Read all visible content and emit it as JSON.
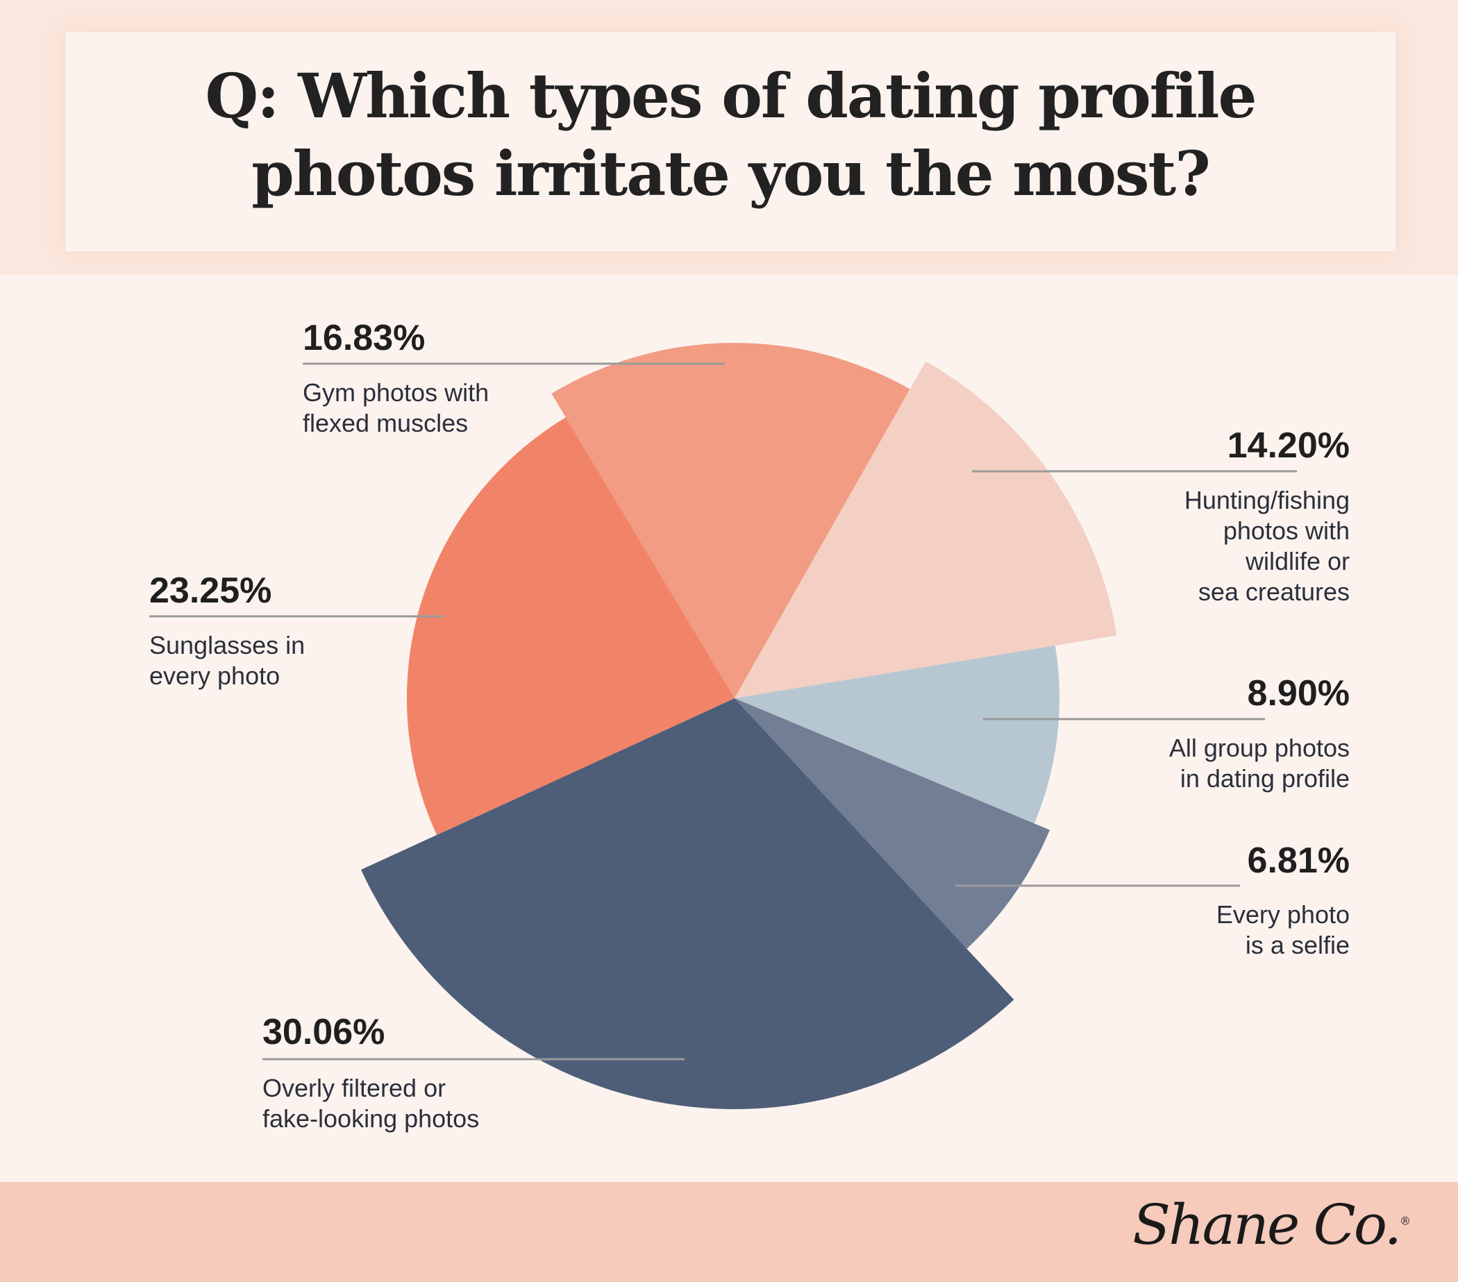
{
  "title": {
    "line1": "Q: Which types of dating profile",
    "line2": "photos irritate you the most?"
  },
  "logo": {
    "text": "Shane Co.",
    "mark": "®"
  },
  "chart_data": {
    "type": "pie",
    "slices": [
      {
        "value": 16.83,
        "percent_label": "16.83%",
        "label_lines": [
          "Gym photos with",
          "flexed muscles"
        ],
        "color": "#f19c83"
      },
      {
        "value": 14.2,
        "percent_label": "14.20%",
        "label_lines": [
          "Hunting/fishing",
          "photos with",
          "wildlife or",
          "sea creatures"
        ],
        "color": "#f3d0c3"
      },
      {
        "value": 8.9,
        "percent_label": "8.90%",
        "label_lines": [
          "All group photos",
          "in dating profile"
        ],
        "color": "#b7c7d2"
      },
      {
        "value": 6.81,
        "percent_label": "6.81%",
        "label_lines": [
          "Every photo",
          "is a selfie"
        ],
        "color": "#717e93"
      },
      {
        "value": 30.06,
        "percent_label": "30.06%",
        "label_lines": [
          "Overly filtered or",
          "fake-looking photos"
        ],
        "color": "#4e5e78"
      },
      {
        "value": 23.25,
        "percent_label": "23.25%",
        "label_lines": [
          "Sunglasses in",
          "every photo"
        ],
        "color": "#f18468"
      }
    ]
  }
}
